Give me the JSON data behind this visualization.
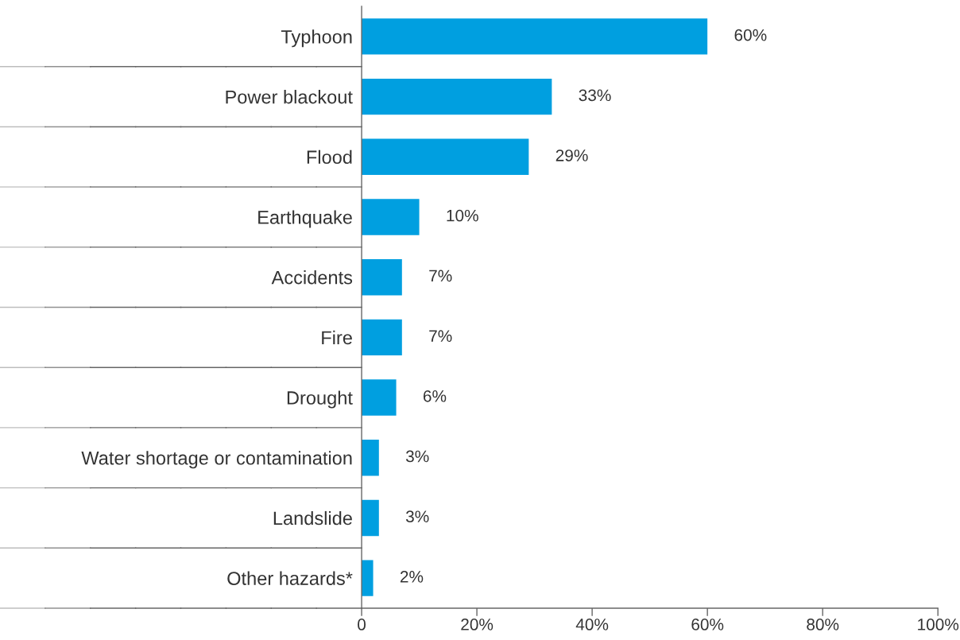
{
  "chart_data": {
    "type": "bar",
    "orientation": "horizontal",
    "categories": [
      "Typhoon",
      "Power blackout",
      "Flood",
      "Earthquake",
      "Accidents",
      "Fire",
      "Drought",
      "Water shortage or contamination",
      "Landslide",
      "Other hazards*"
    ],
    "values": [
      60,
      33,
      29,
      10,
      7,
      7,
      6,
      3,
      3,
      2
    ],
    "value_labels": [
      "60%",
      "33%",
      "29%",
      "10%",
      "7%",
      "7%",
      "6%",
      "3%",
      "3%",
      "2%"
    ],
    "color": "#009fe0",
    "xlim": [
      0,
      100
    ],
    "xticks": [
      0,
      {
        "value": 20,
        "label": "20%"
      },
      {
        "value": 40,
        "label": "40%"
      },
      {
        "value": 60,
        "label": "60%"
      },
      {
        "value": 80,
        "label": "80%"
      },
      {
        "value": 100,
        "label": "100%"
      }
    ]
  }
}
